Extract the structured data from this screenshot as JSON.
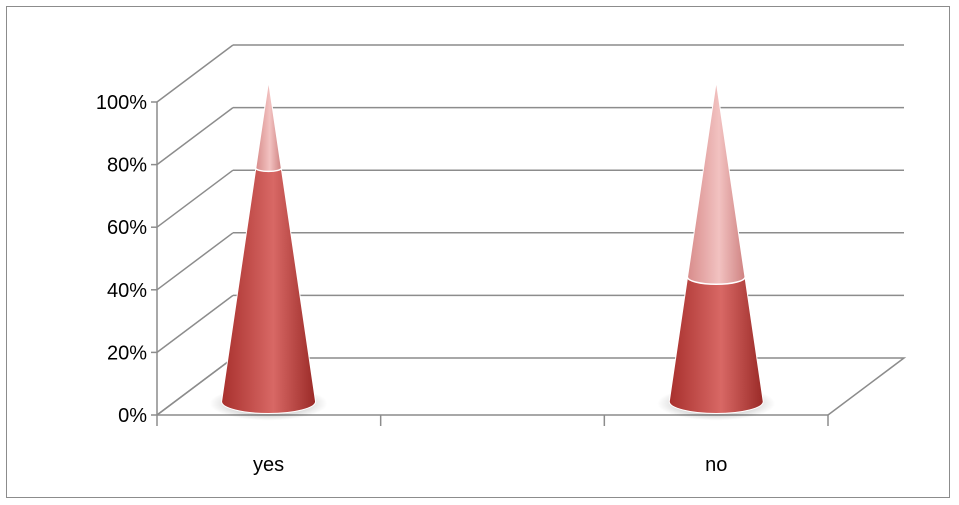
{
  "chart_data": {
    "type": "bar",
    "subtype": "3d-stacked-100-percent-cone",
    "categories": [
      "yes",
      "no"
    ],
    "series": [
      {
        "values": [
          73,
          39
        ],
        "color": "#c0504d"
      },
      {
        "values": [
          27,
          61
        ],
        "color": "#e6a5a4"
      }
    ],
    "ylim": [
      0,
      100
    ],
    "yticks": [
      "0%",
      "20%",
      "40%",
      "60%",
      "80%",
      "100%"
    ],
    "grid": true,
    "legend": "none"
  }
}
